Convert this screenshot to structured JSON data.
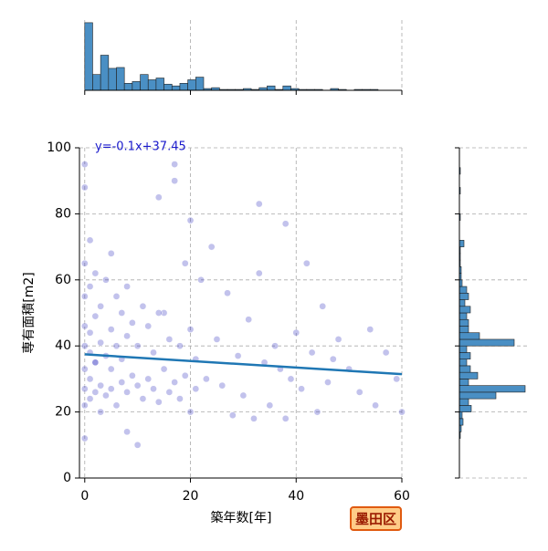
{
  "chart_data": [
    {
      "type": "scatter",
      "xlabel": "築年数[年]",
      "ylabel": "専有面積[m2]",
      "annotation": "y=-0.1x+37.45",
      "regression": {
        "slope": -0.1,
        "intercept": 37.45,
        "color": "#1f77b4"
      },
      "color": "#3535c0",
      "grid": true,
      "xlim": [
        -1,
        60
      ],
      "ylim": [
        0,
        100
      ],
      "xticks": [
        0,
        20,
        40,
        60
      ],
      "yticks": [
        0,
        20,
        40,
        60,
        80,
        100
      ],
      "x": [
        0,
        0,
        0,
        0,
        0,
        0,
        0,
        0,
        0,
        0,
        1,
        1,
        1,
        1,
        1,
        1,
        2,
        2,
        2,
        2,
        3,
        3,
        3,
        3,
        4,
        4,
        4,
        5,
        5,
        5,
        5,
        6,
        6,
        6,
        7,
        7,
        7,
        8,
        8,
        8,
        9,
        9,
        10,
        10,
        10,
        11,
        11,
        12,
        12,
        13,
        13,
        14,
        14,
        15,
        15,
        16,
        16,
        17,
        17,
        18,
        18,
        19,
        19,
        20,
        20,
        20,
        21,
        21,
        22,
        23,
        24,
        25,
        26,
        27,
        28,
        29,
        30,
        31,
        32,
        33,
        34,
        35,
        36,
        37,
        38,
        38,
        39,
        40,
        41,
        42,
        43,
        44,
        45,
        46,
        47,
        48,
        50,
        52,
        54,
        55,
        57,
        59,
        60,
        2,
        8,
        14,
        33,
        17
      ],
      "y": [
        12,
        22,
        27,
        33,
        40,
        46,
        55,
        65,
        88,
        95,
        24,
        30,
        38,
        44,
        58,
        72,
        26,
        35,
        49,
        62,
        20,
        28,
        41,
        52,
        25,
        37,
        60,
        27,
        33,
        45,
        68,
        22,
        40,
        55,
        29,
        36,
        50,
        26,
        43,
        58,
        31,
        47,
        10,
        28,
        40,
        24,
        52,
        30,
        46,
        27,
        38,
        23,
        85,
        33,
        50,
        26,
        42,
        29,
        95,
        24,
        40,
        31,
        65,
        20,
        45,
        78,
        27,
        36,
        60,
        30,
        70,
        42,
        28,
        56,
        19,
        37,
        25,
        48,
        18,
        62,
        35,
        22,
        40,
        33,
        18,
        77,
        30,
        44,
        27,
        65,
        38,
        20,
        52,
        29,
        36,
        42,
        33,
        26,
        45,
        22,
        38,
        30,
        20,
        35,
        14,
        50,
        83,
        90
      ]
    },
    {
      "type": "histogram",
      "orientation": "vertical",
      "color": "#4a8fc4",
      "grid": true,
      "ylim": [
        0,
        80
      ],
      "bins": [
        0,
        1.5,
        3,
        4.5,
        6,
        7.5,
        9,
        10.5,
        12,
        13.5,
        15,
        16.5,
        18,
        19.5,
        21,
        22.5,
        24,
        25.5,
        27,
        28.5,
        30,
        31.5,
        33,
        34.5,
        36,
        37.5,
        39,
        40.5,
        42,
        43.5,
        45,
        46.5,
        48,
        49.5,
        51,
        52.5,
        54,
        55.5,
        57,
        58.5,
        60
      ],
      "values": [
        77,
        18,
        40,
        25,
        26,
        8,
        10,
        18,
        12,
        14,
        7,
        5,
        8,
        12,
        15,
        2,
        3,
        1,
        1,
        1,
        2,
        1,
        3,
        5,
        1,
        5,
        2,
        1,
        1,
        1,
        0,
        2,
        1,
        0,
        1,
        1,
        1,
        0,
        0,
        0
      ]
    },
    {
      "type": "histogram",
      "orientation": "horizontal",
      "color": "#4a8fc4",
      "grid": true,
      "xlim": [
        0,
        75
      ],
      "bins": [
        8,
        10,
        12,
        14,
        16,
        18,
        20,
        22,
        24,
        26,
        28,
        30,
        32,
        34,
        36,
        38,
        40,
        42,
        44,
        46,
        48,
        50,
        52,
        54,
        56,
        58,
        60,
        62,
        64,
        66,
        68,
        70,
        72,
        74,
        76,
        78,
        80,
        82,
        84,
        86,
        88,
        90,
        92,
        94,
        96,
        98,
        100
      ],
      "values": [
        0,
        0,
        1,
        2,
        4,
        3,
        13,
        10,
        40,
        72,
        10,
        20,
        12,
        8,
        12,
        8,
        60,
        22,
        10,
        10,
        8,
        12,
        6,
        10,
        8,
        3,
        2,
        2,
        1,
        1,
        1,
        5,
        0,
        0,
        0,
        1,
        0,
        0,
        0,
        1,
        0,
        0,
        1,
        0,
        0,
        0
      ]
    }
  ],
  "badge": "墨田区"
}
